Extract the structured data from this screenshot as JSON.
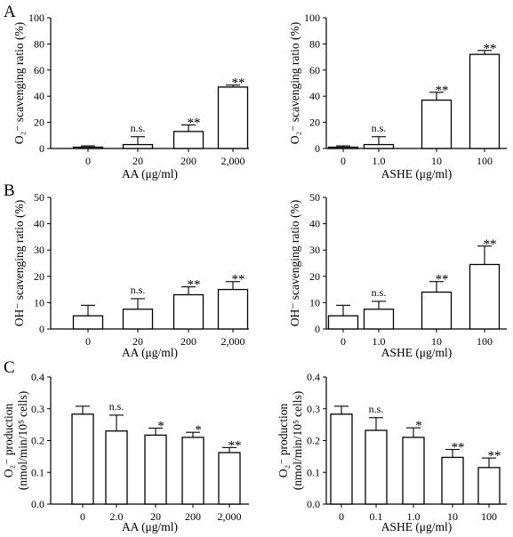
{
  "panel_letters": [
    "A",
    "B",
    "C"
  ],
  "chart_data": [
    {
      "type": "bar",
      "panel": "A",
      "xlabel": "AA (μg/ml)",
      "ylabel": "O₂⁻ scavenging ratio (%)",
      "categories": [
        "0",
        "20",
        "200",
        "2,000"
      ],
      "values": [
        1,
        3,
        13,
        47
      ],
      "errors": [
        1,
        6,
        5,
        1.5
      ],
      "annotations": [
        "",
        "n.s.",
        "**",
        "**"
      ],
      "ylim": [
        0,
        100
      ],
      "yticks": [
        0,
        20,
        40,
        60,
        80,
        100
      ],
      "ytick_labels": [
        "0",
        "20",
        "40",
        "60",
        "80",
        "100"
      ]
    },
    {
      "type": "bar",
      "panel": "A",
      "xlabel": "ASHE (μg/ml)",
      "ylabel": "O₂⁻ scavenging ratio (%)",
      "categories": [
        "0",
        "1.0",
        "10",
        "100"
      ],
      "values": [
        1,
        3,
        37,
        72
      ],
      "errors": [
        1,
        6,
        6,
        3
      ],
      "annotations": [
        "",
        "n.s.",
        "**",
        "**"
      ],
      "ylim": [
        0,
        100
      ],
      "yticks": [
        0,
        20,
        40,
        60,
        80,
        100
      ],
      "ytick_labels": [
        "0",
        "20",
        "40",
        "60",
        "80",
        "100"
      ]
    },
    {
      "type": "bar",
      "panel": "B",
      "xlabel": "AA (μg/ml)",
      "ylabel": "OH⁻ scavenging ratio (%)",
      "categories": [
        "0",
        "20",
        "200",
        "2,000"
      ],
      "values": [
        5,
        7.5,
        13,
        15
      ],
      "errors": [
        4,
        4,
        3,
        3
      ],
      "annotations": [
        "",
        "n.s.",
        "**",
        "**"
      ],
      "ylim": [
        0,
        50
      ],
      "yticks": [
        0,
        10,
        20,
        30,
        40,
        50
      ],
      "ytick_labels": [
        "0",
        "10",
        "20",
        "30",
        "40",
        "50"
      ]
    },
    {
      "type": "bar",
      "panel": "B",
      "xlabel": "ASHE (μg/ml)",
      "ylabel": "OH⁻ scavenging ratio (%)",
      "categories": [
        "0",
        "1.0",
        "10",
        "100"
      ],
      "values": [
        5,
        7.5,
        14,
        24.5
      ],
      "errors": [
        4,
        3,
        4,
        7
      ],
      "annotations": [
        "",
        "n.s.",
        "**",
        "**"
      ],
      "ylim": [
        0,
        50
      ],
      "yticks": [
        0,
        10,
        20,
        30,
        40,
        50
      ],
      "ytick_labels": [
        "0",
        "10",
        "20",
        "30",
        "40",
        "50"
      ]
    },
    {
      "type": "bar",
      "panel": "C",
      "xlabel": "AA (μg/ml)",
      "ylabel": [
        "O₂⁻ production",
        "(nmol/min/10⁵ cells)"
      ],
      "categories": [
        "0",
        "2.0",
        "20",
        "200",
        "2,000"
      ],
      "values": [
        0.283,
        0.23,
        0.217,
        0.21,
        0.162
      ],
      "errors": [
        0.025,
        0.05,
        0.022,
        0.016,
        0.016
      ],
      "annotations": [
        "",
        "n.s.",
        "*",
        "*",
        "**"
      ],
      "ylim": [
        0,
        0.4
      ],
      "yticks": [
        0,
        0.1,
        0.2,
        0.3,
        0.4
      ],
      "ytick_labels": [
        "0.0",
        "0.1",
        "0.2",
        "0.3",
        "0.4"
      ]
    },
    {
      "type": "bar",
      "panel": "C",
      "xlabel": "ASHE (μg/ml)",
      "ylabel": [
        "O₂⁻ production",
        "(nmol/min/10⁵ cells)"
      ],
      "categories": [
        "0",
        "0.1",
        "1.0",
        "10",
        "100"
      ],
      "values": [
        0.283,
        0.232,
        0.21,
        0.147,
        0.115
      ],
      "errors": [
        0.025,
        0.04,
        0.03,
        0.025,
        0.03
      ],
      "annotations": [
        "",
        "n.s.",
        "*",
        "**",
        "**"
      ],
      "ylim": [
        0,
        0.4
      ],
      "yticks": [
        0,
        0.1,
        0.2,
        0.3,
        0.4
      ],
      "ytick_labels": [
        "0.0",
        "0.1",
        "0.2",
        "0.3",
        "0.4"
      ]
    }
  ]
}
